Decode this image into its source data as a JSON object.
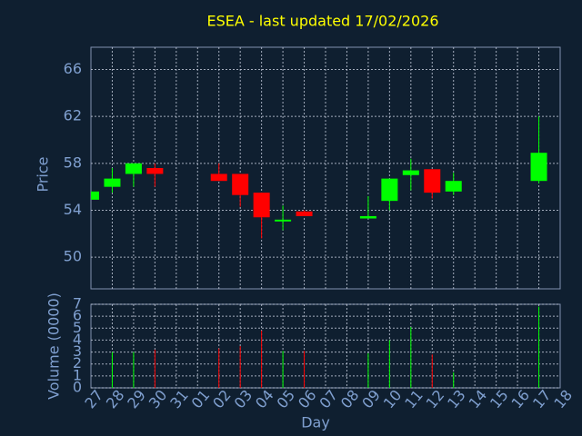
{
  "chart_data": {
    "type": "candlestick",
    "title": "ESEA - last updated 17/02/2026",
    "x_label": "Day",
    "categories": [
      "27",
      "28",
      "29",
      "30",
      "31",
      "01",
      "02",
      "03",
      "04",
      "05",
      "06",
      "07",
      "08",
      "09",
      "10",
      "11",
      "12",
      "13",
      "14",
      "15",
      "16",
      "17",
      "18"
    ],
    "open": [
      54.9,
      56.0,
      57.1,
      57.6,
      null,
      null,
      57.1,
      57.1,
      55.5,
      53.1,
      53.9,
      null,
      null,
      53.3,
      54.8,
      57.0,
      57.5,
      55.6,
      null,
      null,
      null,
      56.5,
      null
    ],
    "high": [
      55.6,
      57.6,
      58.0,
      58.0,
      null,
      null,
      58.0,
      57.1,
      55.5,
      54.4,
      54.0,
      null,
      null,
      55.2,
      56.7,
      58.4,
      57.5,
      57.2,
      null,
      null,
      null,
      62.0,
      null
    ],
    "low": [
      54.9,
      55.5,
      56.0,
      56.0,
      null,
      null,
      56.5,
      54.3,
      51.6,
      52.3,
      53.5,
      null,
      null,
      53.3,
      54.0,
      55.7,
      55.0,
      55.3,
      null,
      null,
      null,
      56.3,
      null
    ],
    "close": [
      55.6,
      56.7,
      58.0,
      57.1,
      null,
      null,
      56.5,
      55.3,
      53.4,
      53.2,
      53.5,
      null,
      null,
      53.5,
      56.7,
      57.4,
      55.5,
      56.5,
      null,
      null,
      null,
      58.9,
      null
    ],
    "ylabel": "Price",
    "ylim": [
      47.3,
      67.9
    ],
    "yticks": [
      50,
      54,
      58,
      62,
      66
    ],
    "up_color": "#00ff00",
    "down_color": "#ff0000",
    "grid": true,
    "volume": {
      "type": "bar",
      "ylabel": "Volume (0000)",
      "values": [
        null,
        3.0,
        3.0,
        3.2,
        null,
        null,
        3.3,
        3.5,
        4.8,
        3.1,
        3.1,
        null,
        null,
        2.9,
        4.0,
        5.1,
        2.8,
        1.3,
        null,
        null,
        null,
        6.8,
        null
      ],
      "ylim": [
        0,
        7
      ],
      "yticks": [
        0,
        1,
        2,
        3,
        4,
        5,
        6,
        7
      ]
    }
  }
}
